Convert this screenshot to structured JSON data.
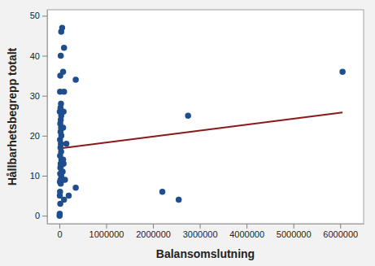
{
  "chart_data": {
    "type": "scatter",
    "x_label": "Balansomslutning",
    "y_label": "Hållbarhetsbegrepp totalt",
    "x": [
      5000,
      8000,
      20000,
      10000,
      15000,
      30000,
      12000,
      25000,
      40000,
      18000,
      50000,
      22000,
      35000,
      28000,
      45000,
      16000,
      38000,
      24000,
      32000,
      14000,
      42000,
      26000,
      36000,
      20000,
      30000,
      40000,
      10000,
      25000,
      35000,
      15000,
      20000,
      30000,
      40000,
      60000,
      100000,
      80000,
      100000,
      90000,
      80000,
      70000,
      90000,
      80000,
      75000,
      150000,
      120000,
      200000,
      100000,
      350000,
      350000,
      2200000,
      2550000,
      2750000,
      6050000
    ],
    "values": [
      0,
      0.5,
      3,
      5,
      6,
      8,
      8.5,
      9,
      10,
      10.5,
      11,
      12,
      12.5,
      13,
      14,
      15,
      16,
      17,
      18,
      19,
      20,
      21,
      22,
      23,
      24,
      25,
      26,
      27,
      28,
      31,
      35,
      40,
      46,
      47,
      42,
      36,
      31,
      26,
      22,
      11,
      13,
      14,
      9,
      18,
      9,
      5,
      4,
      7,
      34,
      6,
      4,
      25,
      36
    ],
    "color": "#1f4e8f",
    "marker": "circle",
    "fit": {
      "type": "line",
      "x": [
        5000,
        6050000
      ],
      "values": [
        16.8,
        25.8
      ],
      "color": "#8b1a1a"
    },
    "xlim": [
      -260000,
      6500000
    ],
    "xticks": [
      0,
      1000000,
      2000000,
      3000000,
      4000000,
      5000000,
      6000000
    ],
    "ylim": [
      -2,
      51.5
    ],
    "yticks": [
      0,
      10,
      20,
      30,
      40,
      50
    ],
    "grid": false
  }
}
